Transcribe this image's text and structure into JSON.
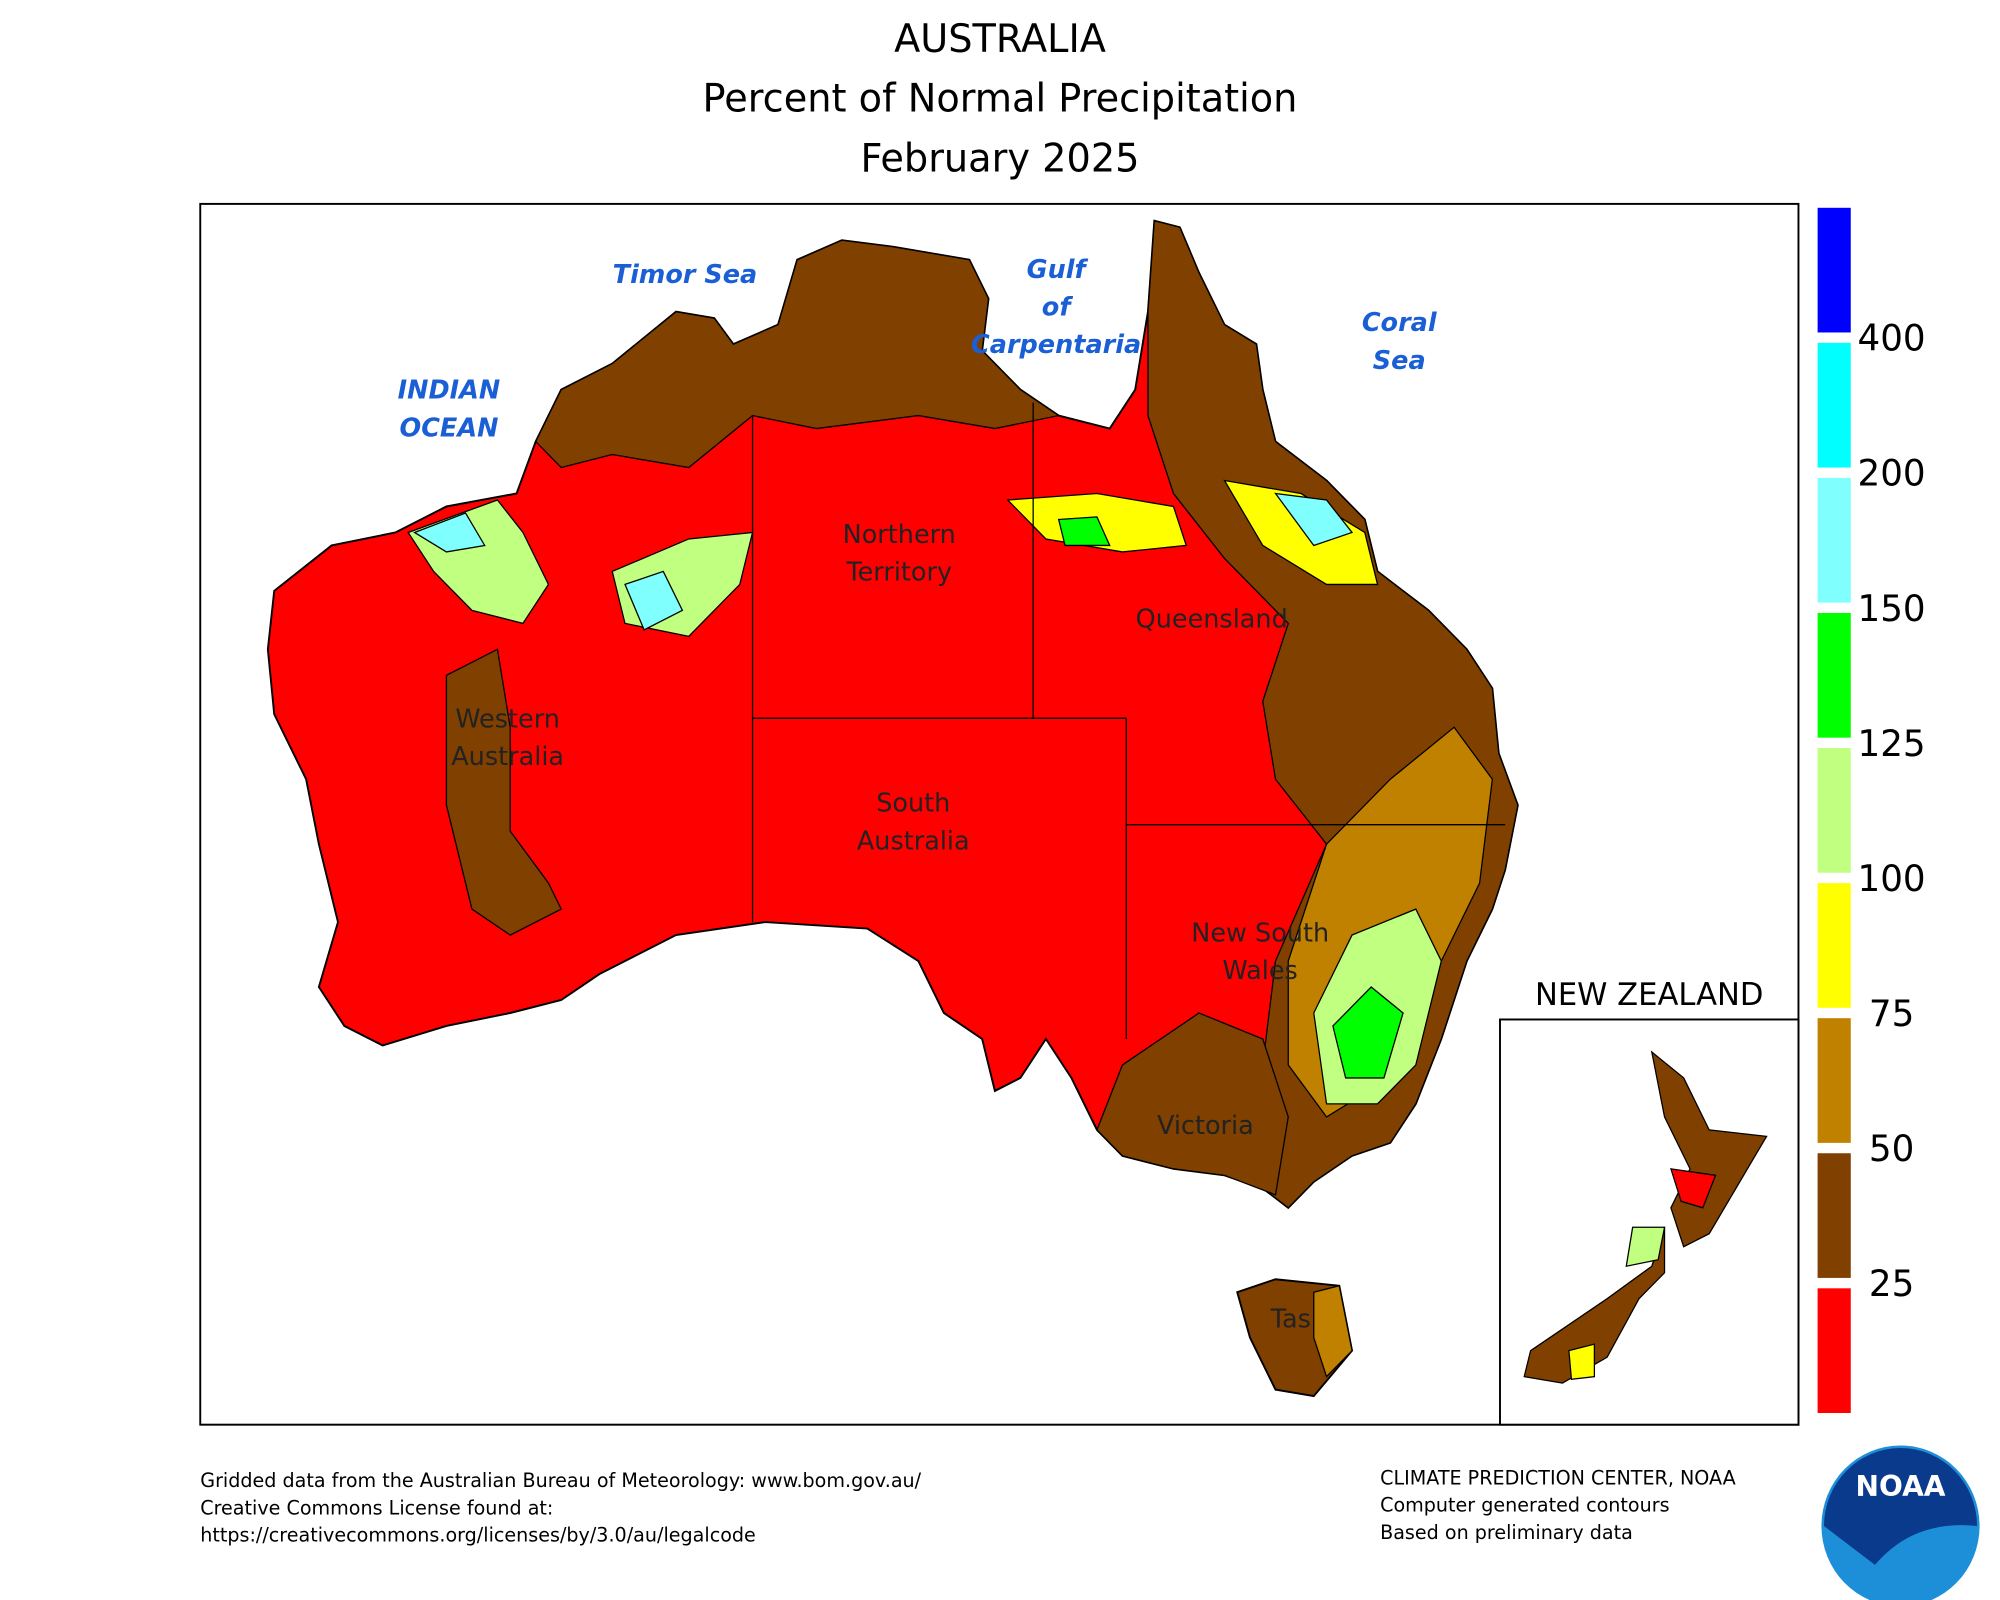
{
  "header": {
    "title": "AUSTRALIA",
    "subtitle": "Percent of Normal Precipitation",
    "period": "February 2025"
  },
  "map": {
    "sea_labels": [
      [
        "Timor Sea"
      ],
      [
        "Gulf",
        "of",
        "Carpentaria"
      ],
      [
        "INDIAN",
        "OCEAN"
      ],
      [
        "Coral",
        "Sea"
      ]
    ],
    "region_labels": [
      [
        "Northern",
        "Territory"
      ],
      [
        "Queensland"
      ],
      [
        "Western",
        "Australia"
      ],
      [
        "South",
        "Australia"
      ],
      [
        "New South",
        "Wales"
      ],
      [
        "Victoria"
      ],
      [
        "Tas"
      ]
    ],
    "inset_title": "NEW ZEALAND"
  },
  "legend": {
    "ticks": [
      400,
      200,
      150,
      125,
      100,
      75,
      50,
      25
    ],
    "colors": [
      "#0000ff",
      "#00ffff",
      "#80ffff",
      "#00ff00",
      "#c0ff80",
      "#ffff00",
      "#c08000",
      "#804000",
      "#ff0000"
    ]
  },
  "footer": {
    "left": [
      "Gridded data from the Australian Bureau of Meteorology: www.bom.gov.au/",
      "Creative Commons License found at:",
      "https://creativecommons.org/licenses/by/3.0/au/legalcode"
    ],
    "right": [
      "CLIMATE PREDICTION CENTER, NOAA",
      "Computer generated contours",
      "Based on preliminary data"
    ]
  },
  "logo": "NOAA"
}
